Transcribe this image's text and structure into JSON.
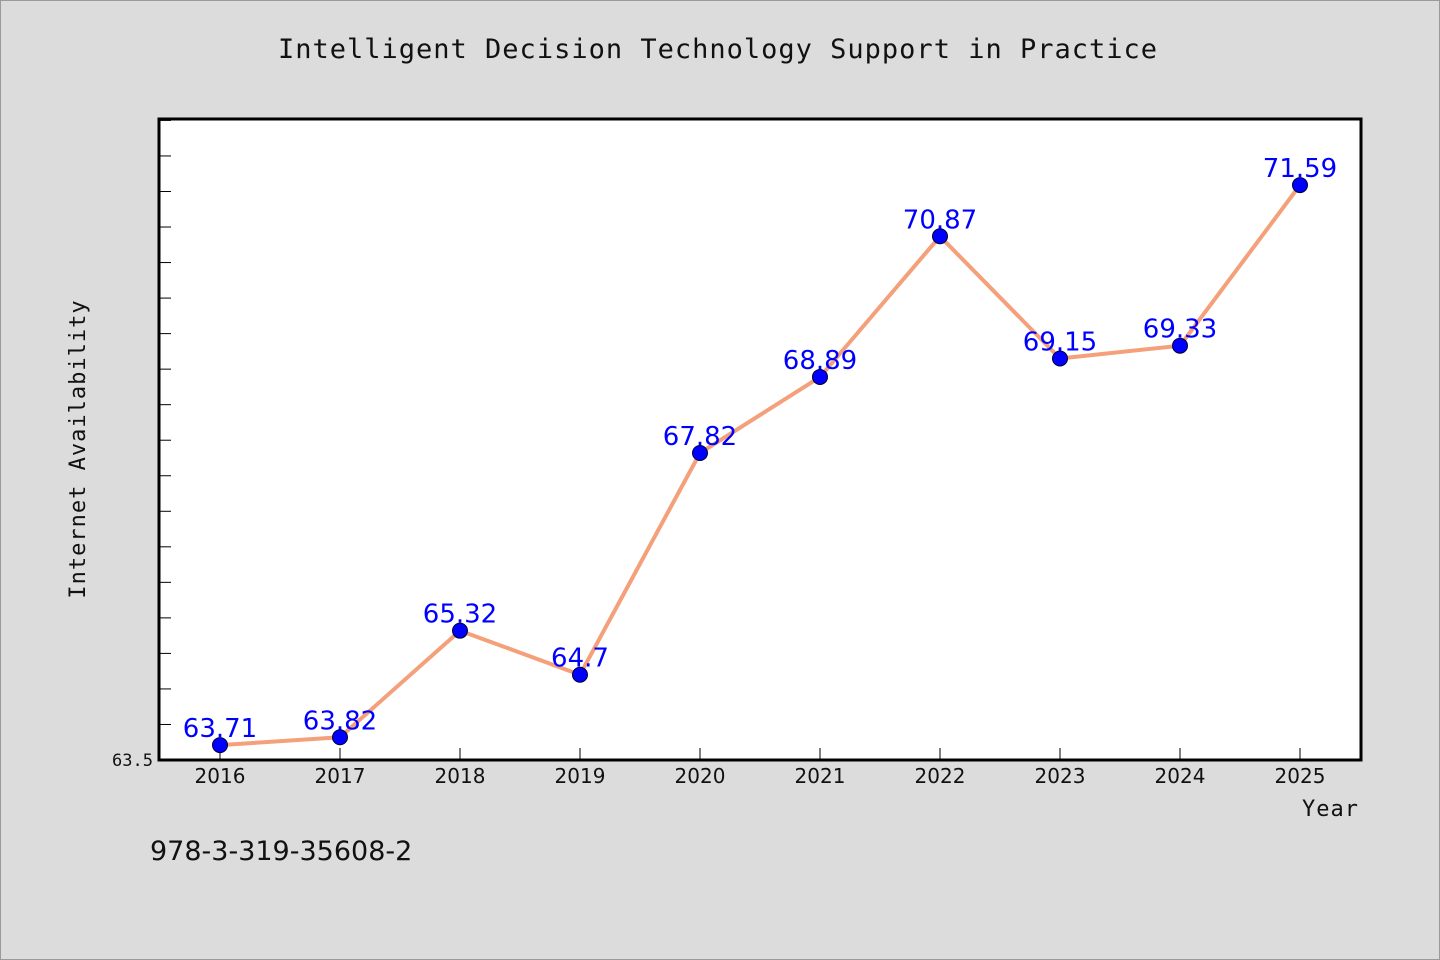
{
  "header": {
    "title": "Intelligent Decision Technology Support in Practice"
  },
  "footer": {
    "code": "978-3-319-35608-2"
  },
  "chart_data": {
    "type": "line",
    "title": "Intelligent Decision Technology Support in Practice",
    "xlabel": "Year",
    "ylabel": "Internet Availability",
    "categories": [
      "2016",
      "2017",
      "2018",
      "2019",
      "2020",
      "2021",
      "2022",
      "2023",
      "2024",
      "2025"
    ],
    "values": [
      63.71,
      63.82,
      65.32,
      64.7,
      67.82,
      68.89,
      70.87,
      69.15,
      69.33,
      71.59
    ],
    "data_labels": [
      "63.71",
      "63.82",
      "65.32",
      "64.7",
      "67.82",
      "68.89",
      "70.87",
      "69.15",
      "69.33",
      "71.59"
    ],
    "y_tick_labels": [
      "63.5"
    ],
    "ylim": [
      63.5,
      72.52
    ],
    "grid": false,
    "legend": "none",
    "line_color": "#f4a07a",
    "marker_color": "#0000ff",
    "label_color": "#0000ff",
    "plot_background": "#ffffff",
    "page_background": "#dcdcdc"
  }
}
